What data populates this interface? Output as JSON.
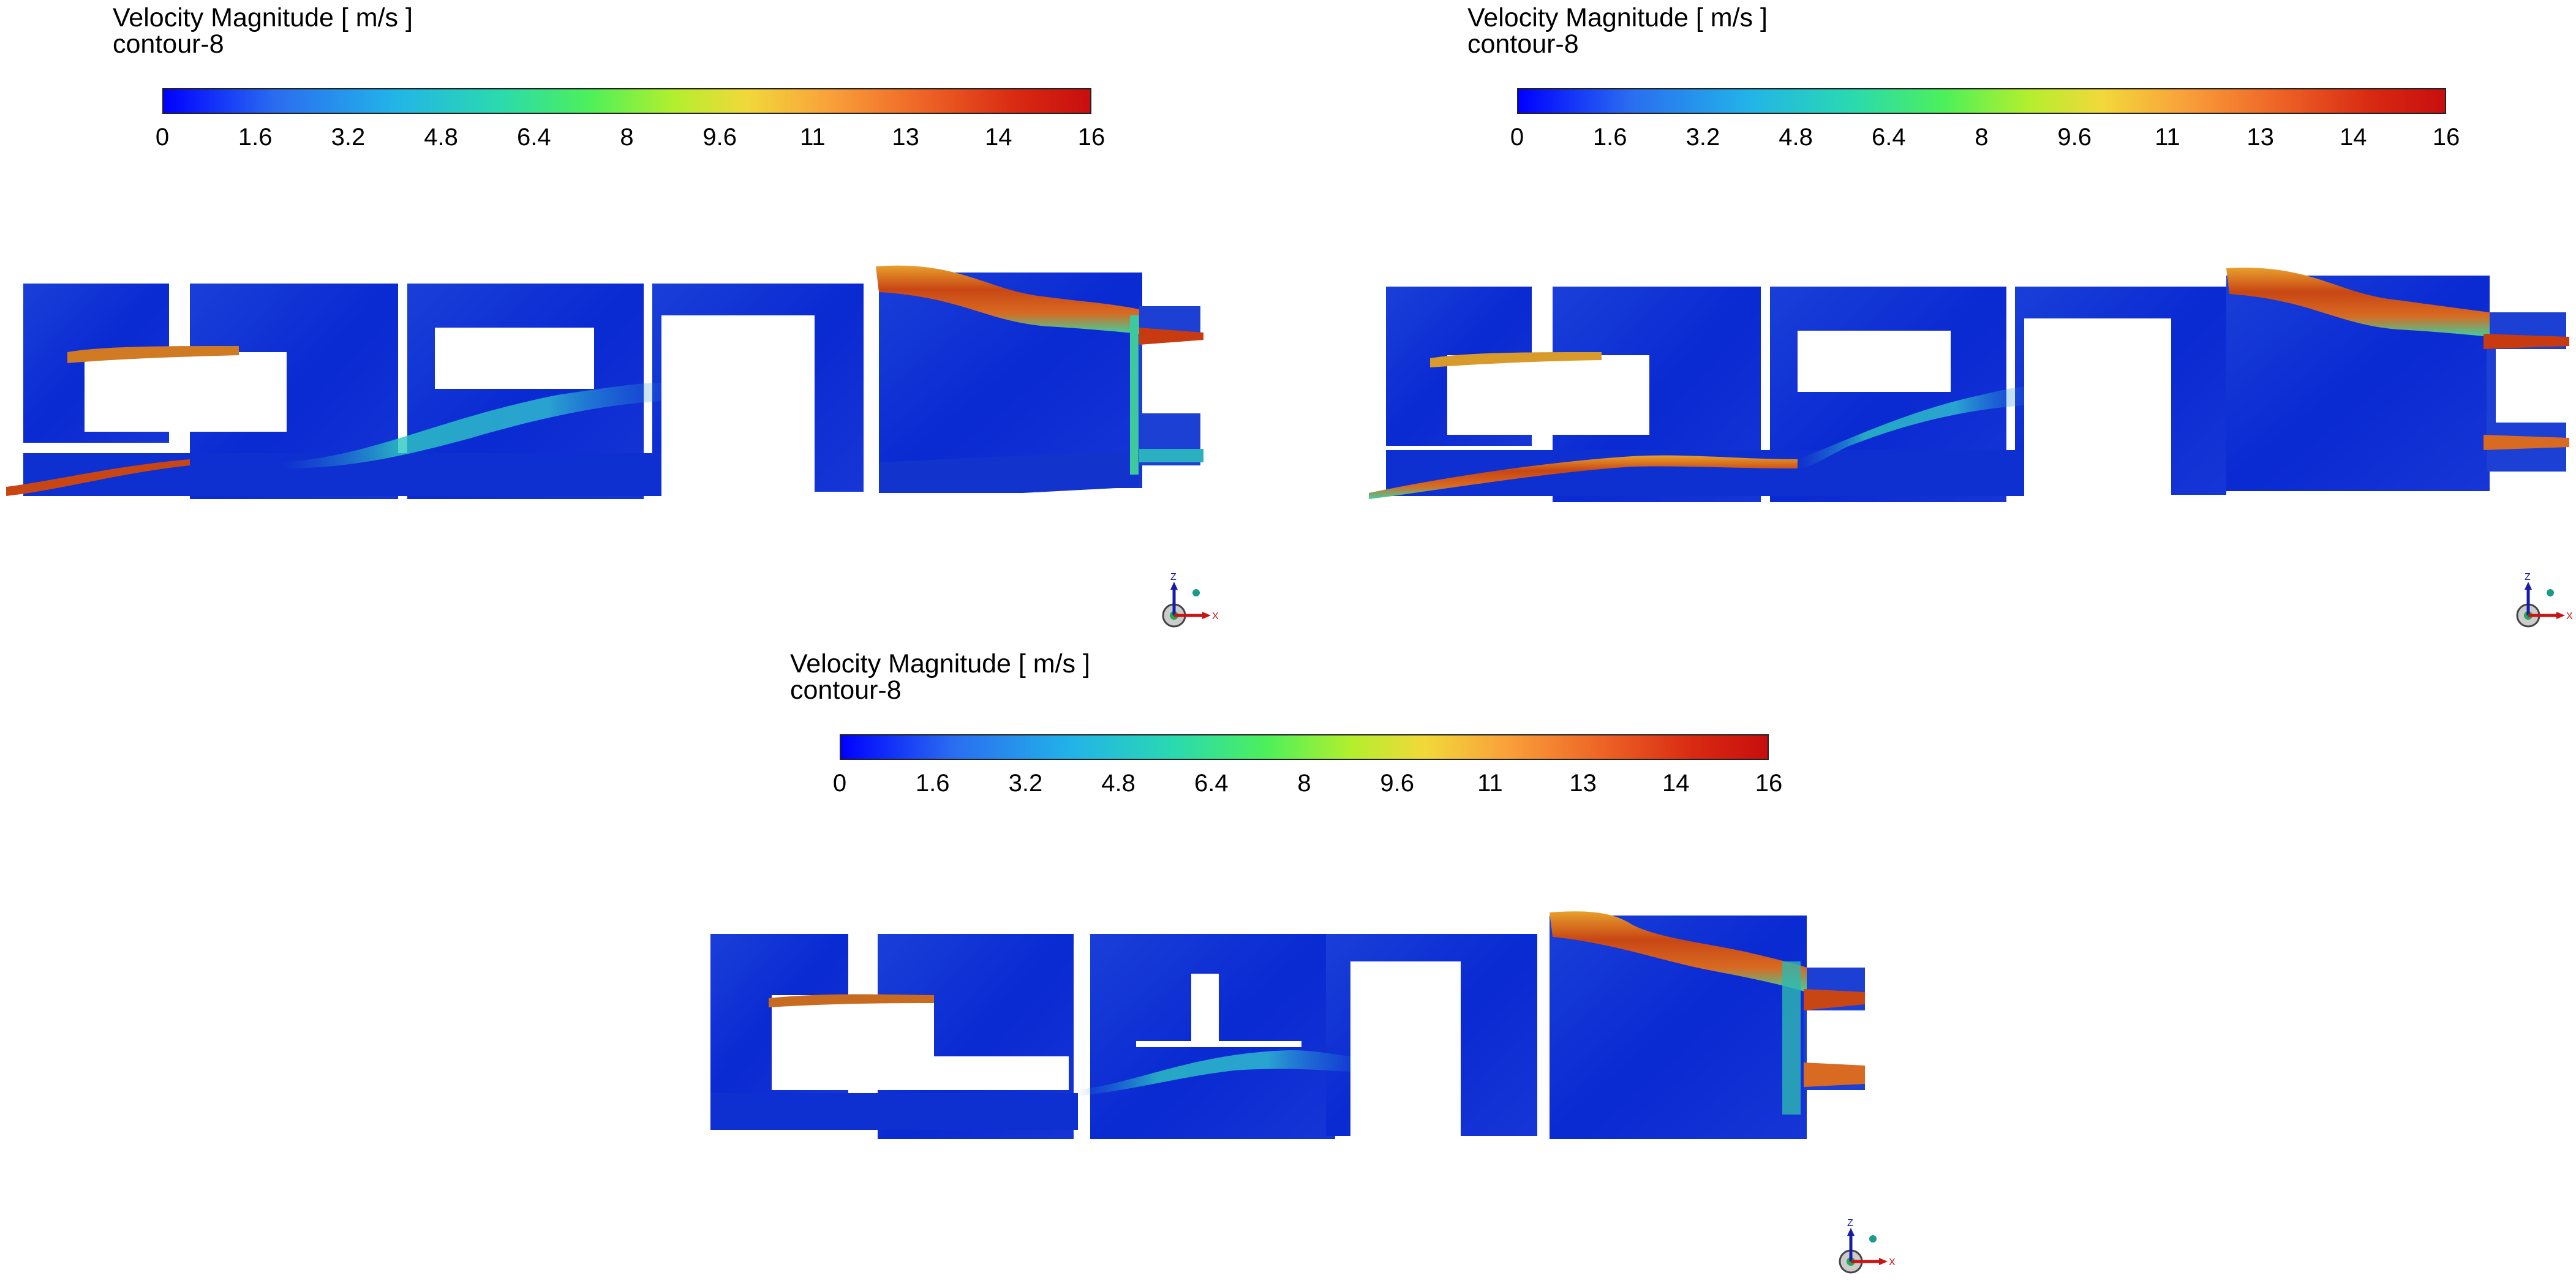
{
  "panels": [
    {
      "title": "Velocity Magnitude [ m/s ]",
      "subtitle": "contour-8",
      "ticks": [
        "0",
        "1.6",
        "3.2",
        "4.8",
        "6.4",
        "8",
        "9.6",
        "11",
        "13",
        "14",
        "16"
      ]
    },
    {
      "title": "Velocity Magnitude [ m/s ]",
      "subtitle": "contour-8",
      "ticks": [
        "0",
        "1.6",
        "3.2",
        "4.8",
        "6.4",
        "8",
        "9.6",
        "11",
        "13",
        "14",
        "16"
      ]
    },
    {
      "title": "Velocity Magnitude [ m/s ]",
      "subtitle": "contour-8",
      "ticks": [
        "0",
        "1.6",
        "3.2",
        "4.8",
        "6.4",
        "8",
        "9.6",
        "11",
        "13",
        "14",
        "16"
      ]
    }
  ],
  "colorbar_colors": [
    "#0000ff",
    "#22b4e8",
    "#4df05a",
    "#f2d83a",
    "#c80e0e"
  ],
  "axes_triad": {
    "up_label": "Z",
    "right_label": "X"
  },
  "icons": [
    "axes-triad-icon"
  ]
}
